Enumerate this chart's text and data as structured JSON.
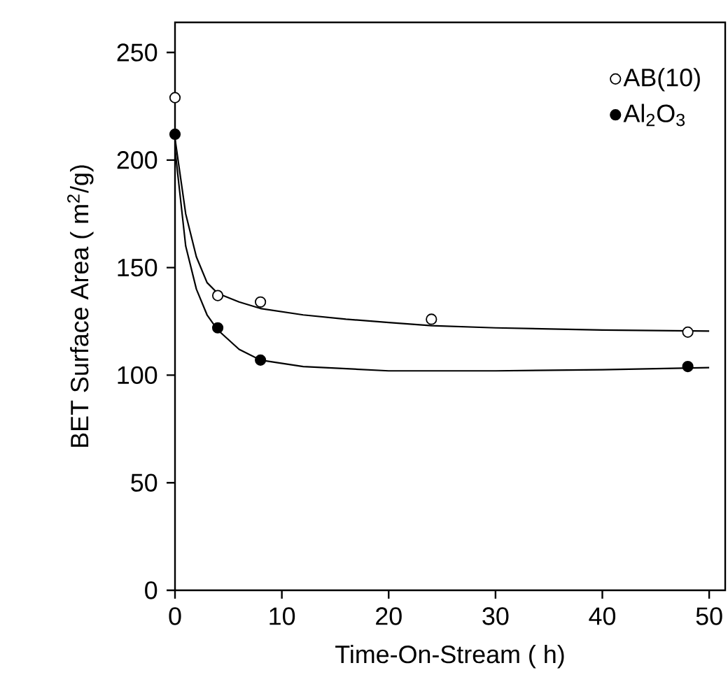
{
  "chart_data": {
    "type": "scatter",
    "xlabel": "Time-On-Stream ( h)",
    "ylabel": "BET Surface Area ( m$^{2}$/g)",
    "xlim": [
      0,
      51.5
    ],
    "ylim": [
      0,
      264
    ],
    "xticks": [
      0,
      10,
      20,
      30,
      40,
      50
    ],
    "yticks": [
      0,
      50,
      100,
      150,
      200,
      250
    ],
    "legend": "top right",
    "grid": false,
    "series": [
      {
        "name": "AB(10)",
        "marker": "circle",
        "color": "#ffffff",
        "x": [
          0,
          4,
          8,
          24,
          48
        ],
        "values": [
          229,
          137,
          134,
          126,
          120
        ]
      },
      {
        "name": "Al$_{2}$O$_{3}$",
        "marker": "circle",
        "color": "#000000",
        "x": [
          0,
          4,
          8,
          48
        ],
        "values": [
          212,
          122,
          107,
          104
        ]
      },
      {
        "type": "line",
        "marker": "none",
        "color": "#000000",
        "x": [
          0,
          1,
          2,
          3,
          4,
          6,
          8,
          12,
          16,
          20,
          24,
          30,
          40,
          50
        ],
        "values": [
          210,
          175,
          155,
          143,
          138,
          134,
          131,
          128,
          126,
          124.5,
          123,
          122,
          121,
          120.5
        ]
      },
      {
        "type": "line",
        "marker": "none",
        "color": "#000000",
        "x": [
          0,
          1,
          2,
          3,
          4,
          6,
          8,
          12,
          20,
          30,
          40,
          50
        ],
        "values": [
          205,
          160,
          140,
          128,
          121,
          112,
          107,
          104,
          102,
          102,
          102.5,
          103.5
        ]
      }
    ]
  }
}
